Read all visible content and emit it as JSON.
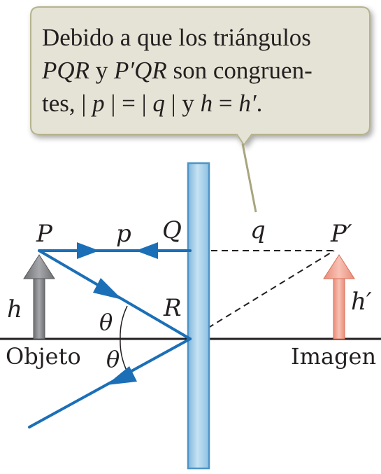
{
  "callout": {
    "lines": [
      [
        "Debido a que los triángulos"
      ],
      [
        "PQR",
        " y ",
        "P′QR",
        " son congruen-"
      ],
      [
        "tes, | ",
        "p",
        " | = | ",
        "q",
        " | y ",
        "h",
        " = ",
        "h′",
        "."
      ]
    ],
    "fill_color": "#e5e3d5",
    "border_color": "#b5b38e"
  },
  "labels": {
    "P": "P",
    "p": "p",
    "Q": "Q",
    "q": "q",
    "P_prime": "P′",
    "R": "R",
    "h": "h",
    "h_prime": "h′",
    "theta_upper": "θ",
    "theta_lower": "θ",
    "objeto": "Objeto",
    "imagen": "Imagen"
  },
  "colors": {
    "ray": "#1b6fb7",
    "mirror": "#a9d3ea",
    "mirror_edge": "#4f94c6",
    "object_arrow": "#8b8c8e",
    "image_arrow": "#f0a595",
    "image_arrow_edge": "#d9705a",
    "axis": "#231f20"
  }
}
